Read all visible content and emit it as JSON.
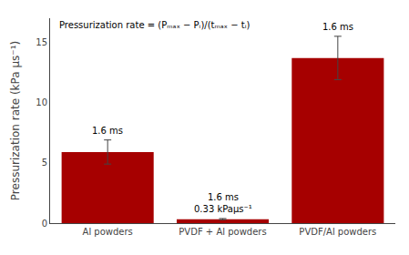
{
  "chart_data": {
    "type": "bar",
    "categories": [
      "Al powders",
      "PVDF + Al powders",
      "PVDF/Al powders"
    ],
    "values": [
      5.9,
      0.33,
      13.7
    ],
    "errors": [
      1.0,
      0.05,
      1.8
    ],
    "color": "#a60000",
    "ylabel": "Pressurization rate (kPa μs⁻¹)",
    "ylim": [
      0,
      17
    ],
    "yticks": [
      0,
      5,
      10,
      15
    ],
    "grid": false,
    "annotations": [
      {
        "text": "Pressurization rate = (Pₘₐₓ − Pᵢ)/(tₘₐₓ − tᵢ)"
      },
      {
        "text": "0.33 kPaμs⁻¹",
        "category": "PVDF + Al powders"
      },
      {
        "text": "1.6 ms",
        "category": "Al powders"
      },
      {
        "text": "1.6 ms",
        "category": "PVDF + Al powders"
      },
      {
        "text": "1.6 ms",
        "category": "PVDF/Al powders"
      }
    ]
  }
}
